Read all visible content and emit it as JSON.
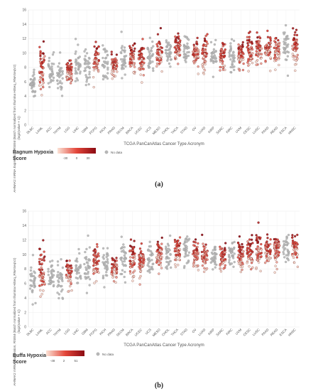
{
  "chart_data": [
    {
      "type": "scatter",
      "caption": "(a)",
      "ylabel_lines": [
        "AHNAK2 mRNA Expression, RSEM (Batch normalized from Illumina HiSeq_RNASeqV2)",
        "(log2(value + 1))"
      ],
      "xlabel": "TCGA PanCanAtlas Cancer Type Acronym",
      "ylim": [
        0,
        16
      ],
      "yticks": [
        0,
        2,
        4,
        6,
        8,
        10,
        12,
        14,
        16
      ],
      "grid": true,
      "categories": [
        "DLBC",
        "LAML",
        "ACC",
        "THYM",
        "LGG",
        "LIHC",
        "GBM",
        "PCPG",
        "KICH",
        "PRAD",
        "SKCM",
        "BRCA",
        "UCEC",
        "UCS",
        "MESO",
        "CHOL",
        "THCA",
        "STAD",
        "OV",
        "LUAD",
        "KIRP",
        "SARC",
        "KIRC",
        "UVM",
        "CESC",
        "LUSC",
        "PAAD",
        "READ",
        "ESCA",
        "HNSC"
      ],
      "shown_labels": [
        "DLBC",
        "LAML",
        "ACC",
        "THYM",
        "LGG",
        "LIHC",
        "GBM",
        "PCPG",
        "KICH",
        "PRAD",
        "SKCM",
        "BRCA",
        "UCEC",
        "UCS",
        "MESO",
        "CHOL",
        "THCA",
        "STAD",
        "OV",
        "LUAD",
        "KIRP",
        "SARC",
        "KIRC",
        "UVM",
        "CESC",
        "LUSC",
        "PAAD",
        "READ",
        "ESCA",
        "HNSC"
      ],
      "colored": [
        false,
        true,
        false,
        false,
        true,
        false,
        false,
        true,
        false,
        true,
        false,
        true,
        true,
        false,
        true,
        false,
        true,
        false,
        true,
        true,
        false,
        true,
        false,
        true,
        true,
        true,
        true,
        true,
        false,
        true
      ],
      "median": [
        6.0,
        7.5,
        7.2,
        7.0,
        7.5,
        8.2,
        8.5,
        9.0,
        8.8,
        8.2,
        9.0,
        9.0,
        9.0,
        9.5,
        10.0,
        9.8,
        10.5,
        10.5,
        10.0,
        10.0,
        9.5,
        9.5,
        9.8,
        9.8,
        10.2,
        10.5,
        10.5,
        10.8,
        11.0,
        10.8
      ],
      "spread": [
        2.2,
        3.0,
        2.0,
        2.2,
        1.8,
        1.8,
        2.2,
        2.0,
        2.0,
        1.6,
        2.2,
        2.0,
        2.2,
        2.0,
        2.0,
        1.8,
        2.0,
        2.0,
        1.8,
        2.0,
        1.8,
        1.8,
        2.0,
        1.8,
        2.2,
        2.0,
        1.8,
        2.0,
        2.0,
        2.0
      ],
      "legend": {
        "title_line1": "Ragnum Hypoxia",
        "title_line2": "Score",
        "scale_ticks": [
          "-30",
          "0",
          "30"
        ],
        "scale_colors": [
          "#fbe3d6",
          "#e3463a",
          "#8b0a12"
        ],
        "no_data_label": "No data",
        "no_data_color": "#b8b8b8"
      }
    },
    {
      "type": "scatter",
      "caption": "(b)",
      "ylabel_lines": [
        "AHNAK2 mRNA Expression, RSEM (Batch normalized from Illumina HiSeq_RNASeqV2)",
        "(log2(value + 1))"
      ],
      "xlabel": "TCGA PanCanAtlas Cancer Type Acronym",
      "ylim": [
        0,
        16
      ],
      "yticks": [
        0,
        2,
        4,
        6,
        8,
        10,
        12,
        14,
        16
      ],
      "grid": true,
      "categories": [
        "DLBC",
        "LAML",
        "ACC",
        "THYM",
        "LGG",
        "LIHC",
        "GBM",
        "PCPG",
        "KICH",
        "PRAD",
        "SKCM",
        "BRCA",
        "UCEC",
        "UCS",
        "MESO",
        "CHOL",
        "THCA",
        "STAD",
        "OV",
        "LUAD",
        "KIRP",
        "SARC",
        "KIRC",
        "UVM",
        "CESC",
        "LUSC",
        "PAAD",
        "READ",
        "ESCA",
        "HNSC"
      ],
      "shown_labels": [
        "DLBC",
        "LAML",
        "ACC",
        "THYM",
        "LGG",
        "LIHC",
        "GBM",
        "PCPG",
        "KICH",
        "PRAD",
        "SKCM",
        "BRCA",
        "UCEC",
        "UCS",
        "MESO",
        "CHOL",
        "THCA",
        "STAD",
        "OV",
        "LUAD",
        "KIRP",
        "SARC",
        "KIRC",
        "UVM",
        "CESC",
        "LUSC",
        "PAAD",
        "READ",
        "ESCA",
        "HNSC"
      ],
      "colored": [
        false,
        true,
        false,
        false,
        true,
        false,
        false,
        true,
        false,
        true,
        false,
        true,
        true,
        false,
        true,
        false,
        true,
        false,
        true,
        true,
        false,
        true,
        false,
        true,
        true,
        true,
        true,
        true,
        false,
        true
      ],
      "median": [
        6.0,
        7.5,
        7.2,
        7.0,
        7.5,
        8.2,
        8.5,
        9.0,
        8.8,
        8.2,
        9.0,
        9.0,
        9.0,
        9.5,
        10.0,
        9.8,
        10.5,
        10.5,
        10.0,
        10.0,
        9.5,
        9.5,
        9.8,
        9.8,
        10.2,
        10.5,
        10.5,
        10.8,
        11.0,
        10.8
      ],
      "spread": [
        2.2,
        3.0,
        2.0,
        2.2,
        1.8,
        1.8,
        2.2,
        2.0,
        2.0,
        1.6,
        2.2,
        2.0,
        2.2,
        2.0,
        2.0,
        1.8,
        2.0,
        2.0,
        1.8,
        2.0,
        1.8,
        1.8,
        2.0,
        1.8,
        2.2,
        2.0,
        1.8,
        2.0,
        2.0,
        2.0
      ],
      "legend": {
        "title_line1": "Buffa Hypoxia",
        "title_line2": "Score",
        "scale_ticks": [
          "-48",
          "2",
          "51"
        ],
        "scale_colors": [
          "#fbe3d6",
          "#e3463a",
          "#8b0a12"
        ],
        "no_data_label": "No data",
        "no_data_color": "#b8b8b8"
      }
    }
  ]
}
